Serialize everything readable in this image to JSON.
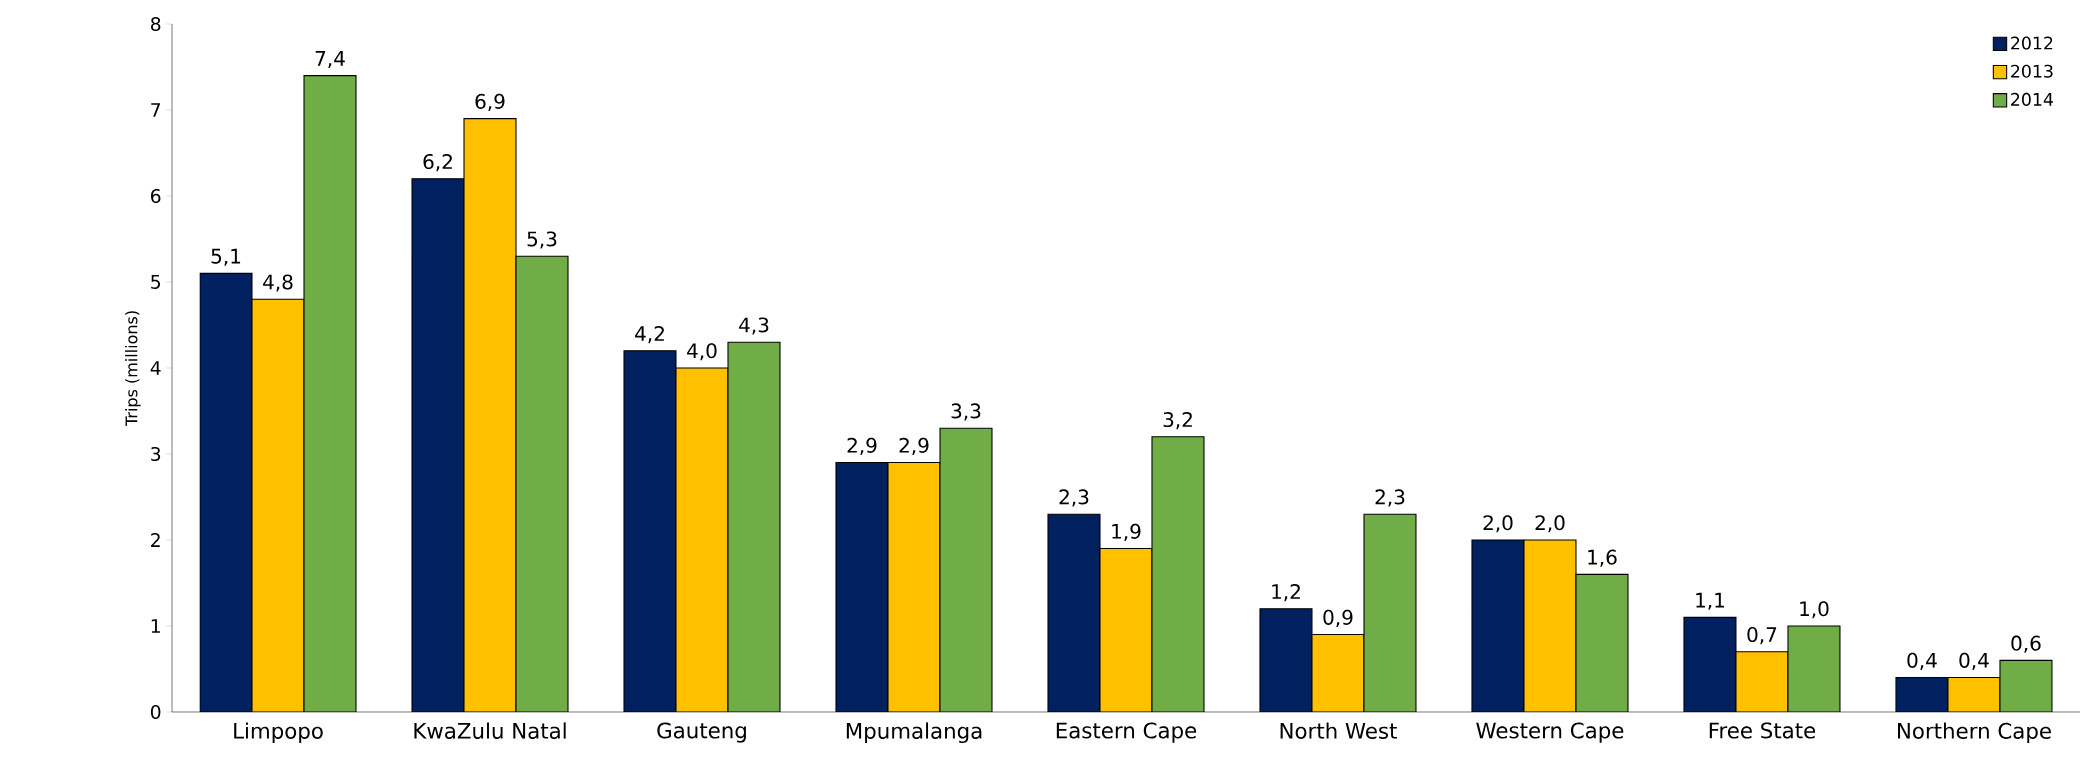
{
  "chart_data": {
    "type": "bar",
    "ylabel": "Trips (millions)",
    "categories": [
      "Limpopo",
      "KwaZulu Natal",
      "Gauteng",
      "Mpumalanga",
      "Eastern Cape",
      "North West",
      "Western Cape",
      "Free State",
      "Northern Cape"
    ],
    "series": [
      {
        "name": "2012",
        "color": "#002060",
        "values": [
          5.1,
          6.2,
          4.2,
          2.9,
          2.3,
          1.2,
          2.0,
          1.1,
          0.4
        ],
        "value_labels": [
          "5,1",
          "6,2",
          "4,2",
          "2,9",
          "2,3",
          "1,2",
          "2,0",
          "1,1",
          "0,4"
        ]
      },
      {
        "name": "2013",
        "color": "#ffc000",
        "values": [
          4.8,
          6.9,
          4.0,
          2.9,
          1.9,
          0.9,
          2.0,
          0.7,
          0.4
        ],
        "value_labels": [
          "4,8",
          "6,9",
          "4,0",
          "2,9",
          "1,9",
          "0,9",
          "2,0",
          "0,7",
          "0,4"
        ]
      },
      {
        "name": "2014",
        "color": "#70ad47",
        "values": [
          7.4,
          5.3,
          4.3,
          3.3,
          3.2,
          2.3,
          1.6,
          1.0,
          0.6
        ],
        "value_labels": [
          "7,4",
          "5,3",
          "4,3",
          "3,3",
          "3,2",
          "2,3",
          "1,6",
          "1,0",
          "0,6"
        ]
      }
    ],
    "ylim": [
      0,
      8
    ],
    "yticks": [
      0,
      1,
      2,
      3,
      4,
      5,
      6,
      7,
      8
    ],
    "legend": "top right"
  }
}
